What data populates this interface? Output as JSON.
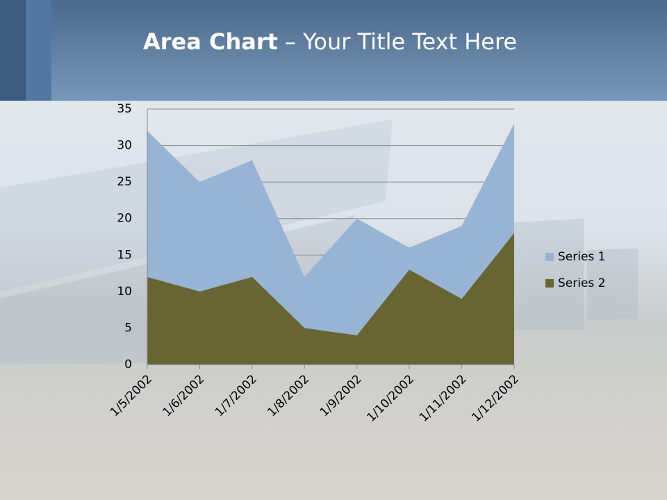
{
  "title_bold": "Area Chart",
  "title_rest": "– Your Title Text Here",
  "chart_data": {
    "type": "area",
    "categories": [
      "1/5/2002",
      "1/6/2002",
      "1/7/2002",
      "1/8/2002",
      "1/9/2002",
      "1/10/2002",
      "1/11/2002",
      "1/12/2002"
    ],
    "series": [
      {
        "name": "Series 1",
        "color": "#98b4d4",
        "values": [
          32,
          25,
          28,
          12,
          20,
          16,
          19,
          33
        ]
      },
      {
        "name": "Series 2",
        "color": "#676633",
        "values": [
          12,
          10,
          12,
          5,
          4,
          13,
          9,
          18
        ]
      }
    ],
    "ylim": [
      0,
      35
    ],
    "yticks": [
      0,
      5,
      10,
      15,
      20,
      25,
      30,
      35
    ],
    "grid": true,
    "legend": "right"
  }
}
